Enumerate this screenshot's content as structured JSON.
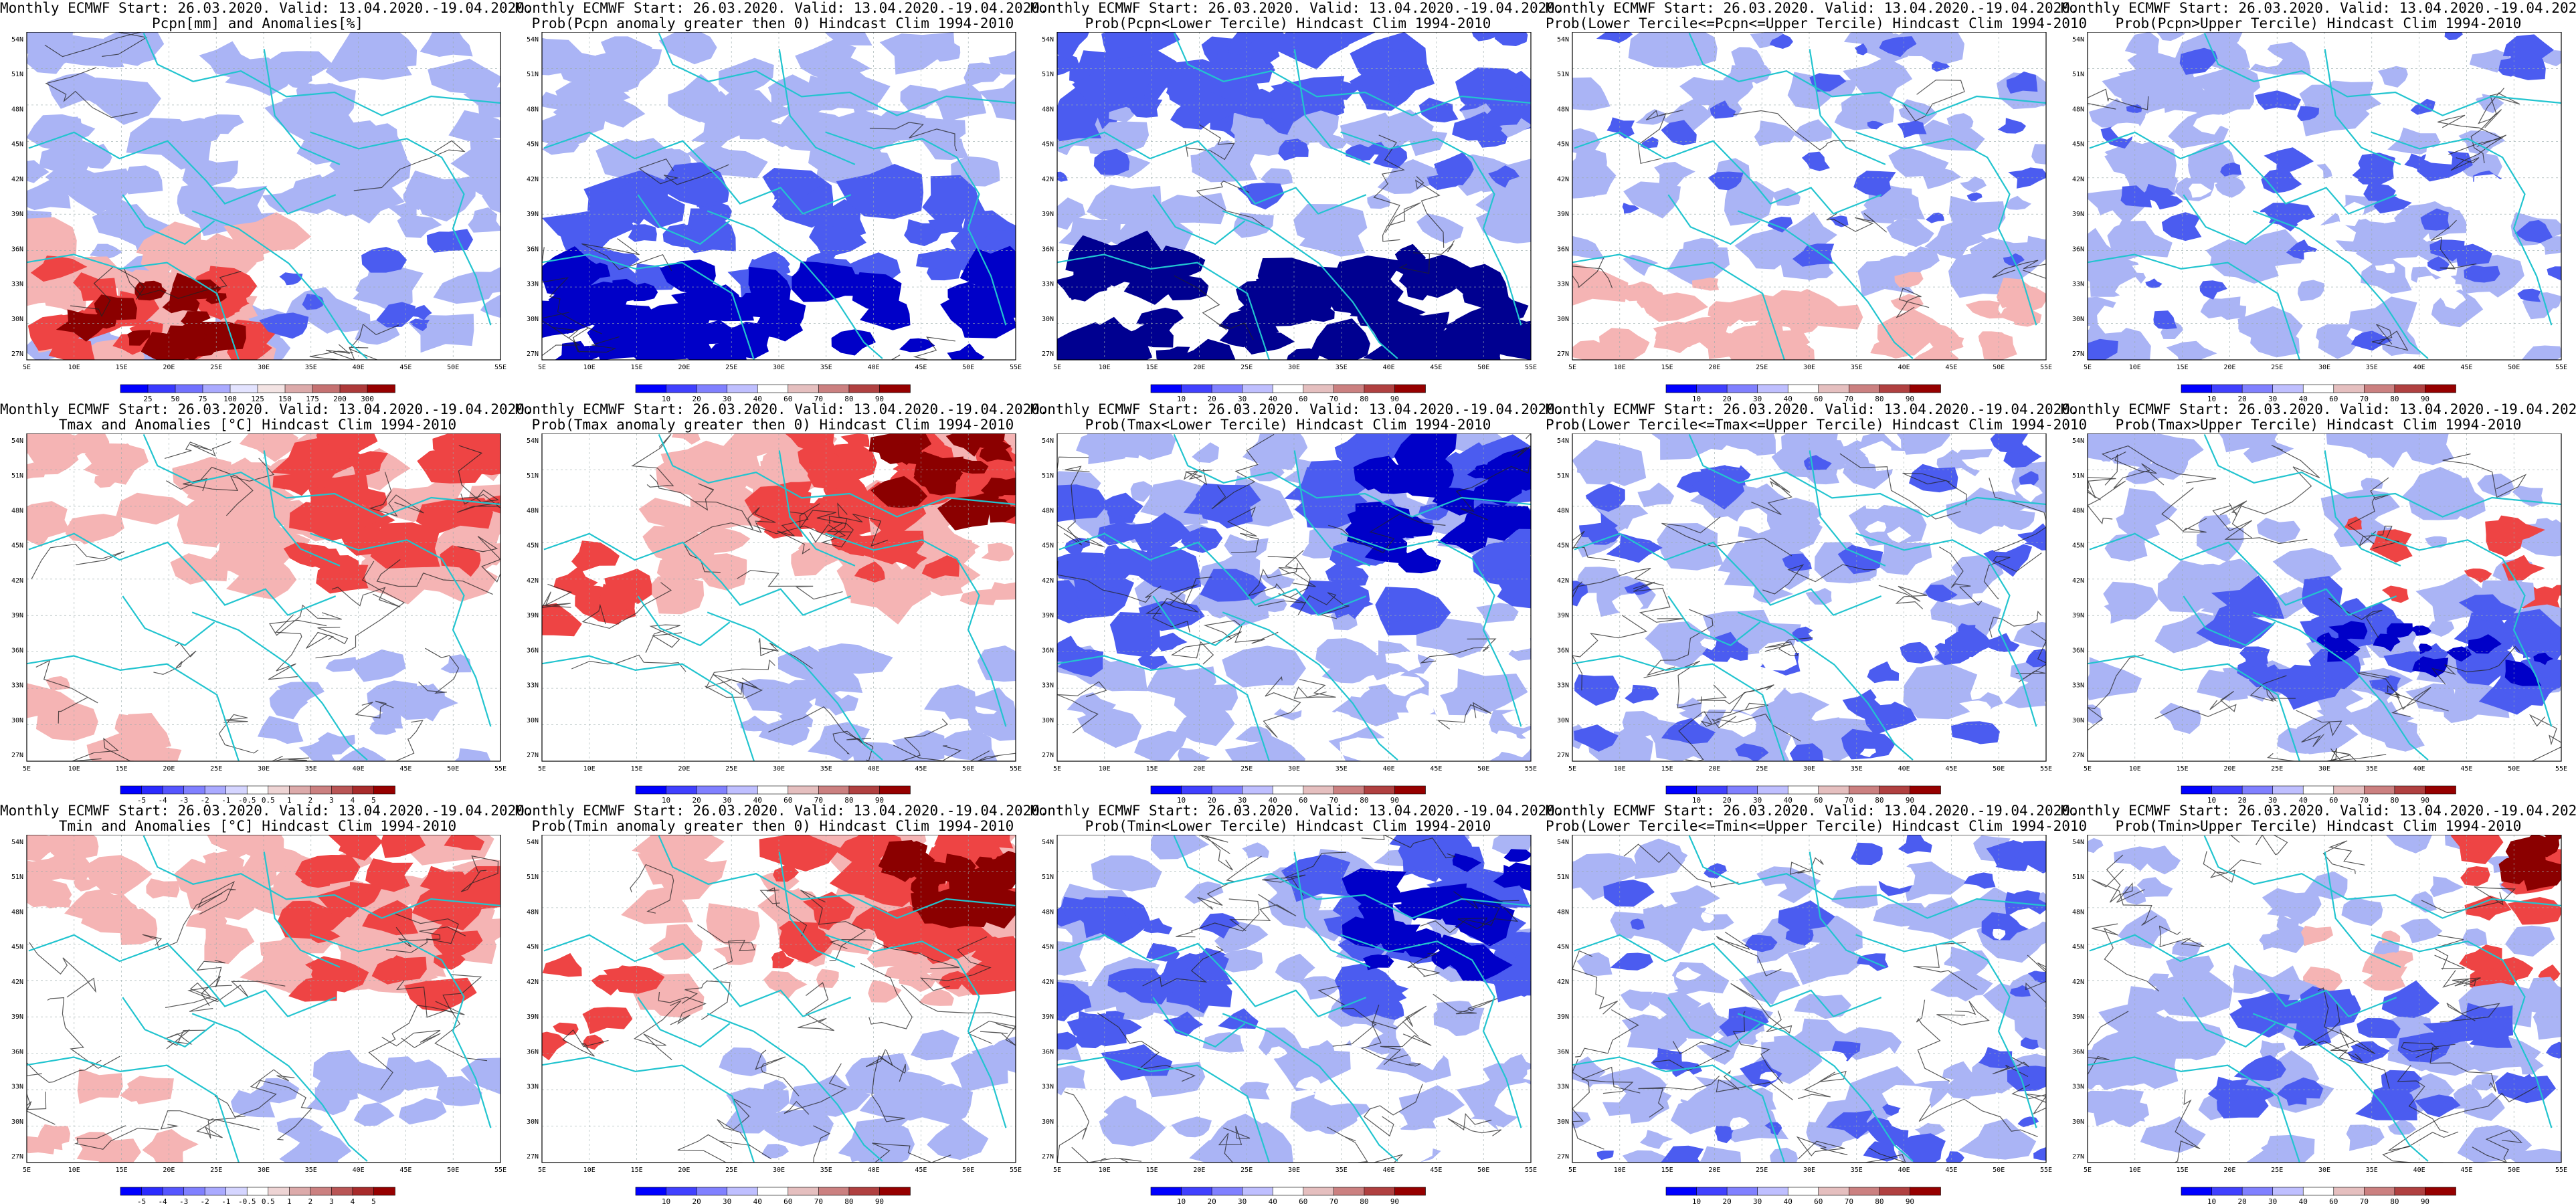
{
  "line1": "Monthly ECMWF Start: 26.03.2020. Valid: 13.04.2020.-19.04.2020.",
  "lat_labels": [
    "54N",
    "51N",
    "48N",
    "45N",
    "42N",
    "39N",
    "36N",
    "33N",
    "30N",
    "27N"
  ],
  "lon_labels": [
    "5E",
    "10E",
    "15E",
    "20E",
    "25E",
    "30E",
    "35E",
    "40E",
    "45E",
    "50E",
    "55E"
  ],
  "colors": {
    "blue_dark": "#0000c8",
    "blue_mid": "#4b5cf0",
    "blue_light": "#aab4f5",
    "white": "#ffffff",
    "red_light": "#f5b4b4",
    "red_mid": "#ee4444",
    "red_dark": "#8b0000",
    "coast": "#22c4cf",
    "contour": "#222222"
  },
  "colorbars": {
    "precip_anom": {
      "ticks": [
        "25",
        "50",
        "75",
        "100",
        "125",
        "150",
        "175",
        "200",
        "300"
      ]
    },
    "temp_anom": {
      "ticks": [
        "-5",
        "-4",
        "-3",
        "-2",
        "-1",
        "-0.5",
        "0.5",
        "1",
        "2",
        "3",
        "4",
        "5"
      ]
    },
    "prob": {
      "ticks": [
        "10",
        "20",
        "30",
        "40",
        "60",
        "70",
        "80",
        "90"
      ]
    }
  },
  "panels": [
    {
      "id": "pcpn-anom",
      "line2": "Pcpn[mm] and Anomalies[%]",
      "cbar": "precip_anom",
      "pattern": "south_red"
    },
    {
      "id": "pcpn-prob-gt0",
      "line2": "Prob(Pcpn anomaly greater then 0) Hindcast Clim 1994-2010",
      "cbar": "prob",
      "pattern": "south_blue"
    },
    {
      "id": "pcpn-lower",
      "line2": "Prob(Pcpn<Lower Tercile) Hindcast Clim 1994-2010",
      "cbar": "prob",
      "pattern": "south_navy"
    },
    {
      "id": "pcpn-middle",
      "line2": "Prob(Lower Tercile<=Pcpn<=Upper Tercile) Hindcast Clim 1994-2010",
      "cbar": "prob",
      "pattern": "south_pink"
    },
    {
      "id": "pcpn-upper",
      "line2": "Prob(Pcpn>Upper Tercile) Hindcast Clim 1994-2010",
      "cbar": "prob",
      "pattern": "mixed_blue"
    },
    {
      "id": "tmax-anom",
      "line2": "Tmax and Anomalies [°C] Hindcast Clim 1994-2010",
      "cbar": "temp_anom",
      "pattern": "ne_red"
    },
    {
      "id": "tmax-prob-gt0",
      "line2": "Prob(Tmax anomaly greater then 0) Hindcast Clim 1994-2010",
      "cbar": "prob",
      "pattern": "ne_red_strong"
    },
    {
      "id": "tmax-lower",
      "line2": "Prob(Tmax<Lower Tercile) Hindcast Clim 1994-2010",
      "cbar": "prob",
      "pattern": "ne_blue"
    },
    {
      "id": "tmax-middle",
      "line2": "Prob(Lower Tercile<=Tmax<=Upper Tercile) Hindcast Clim 1994-2010",
      "cbar": "prob",
      "pattern": "mixed_blue"
    },
    {
      "id": "tmax-upper",
      "line2": "Prob(Tmax>Upper Tercile) Hindcast Clim 1994-2010",
      "cbar": "prob",
      "pattern": "center_blue"
    },
    {
      "id": "tmin-anom",
      "line2": "Tmin and Anomalies [°C] Hindcast Clim 1994-2010",
      "cbar": "temp_anom",
      "pattern": "ne_red"
    },
    {
      "id": "tmin-prob-gt0",
      "line2": "Prob(Tmin anomaly greater then 0) Hindcast Clim 1994-2010",
      "cbar": "prob",
      "pattern": "ne_red_strong"
    },
    {
      "id": "tmin-lower",
      "line2": "Prob(Tmin<Lower Tercile) Hindcast Clim 1994-2010",
      "cbar": "prob",
      "pattern": "ne_blue"
    },
    {
      "id": "tmin-middle",
      "line2": "Prob(Lower Tercile<=Tmin<=Upper Tercile) Hindcast Clim 1994-2010",
      "cbar": "prob",
      "pattern": "mixed_blue"
    },
    {
      "id": "tmin-upper",
      "line2": "Prob(Tmin>Upper Tercile) Hindcast Clim 1994-2010",
      "cbar": "prob",
      "pattern": "ne_red_corner"
    }
  ]
}
